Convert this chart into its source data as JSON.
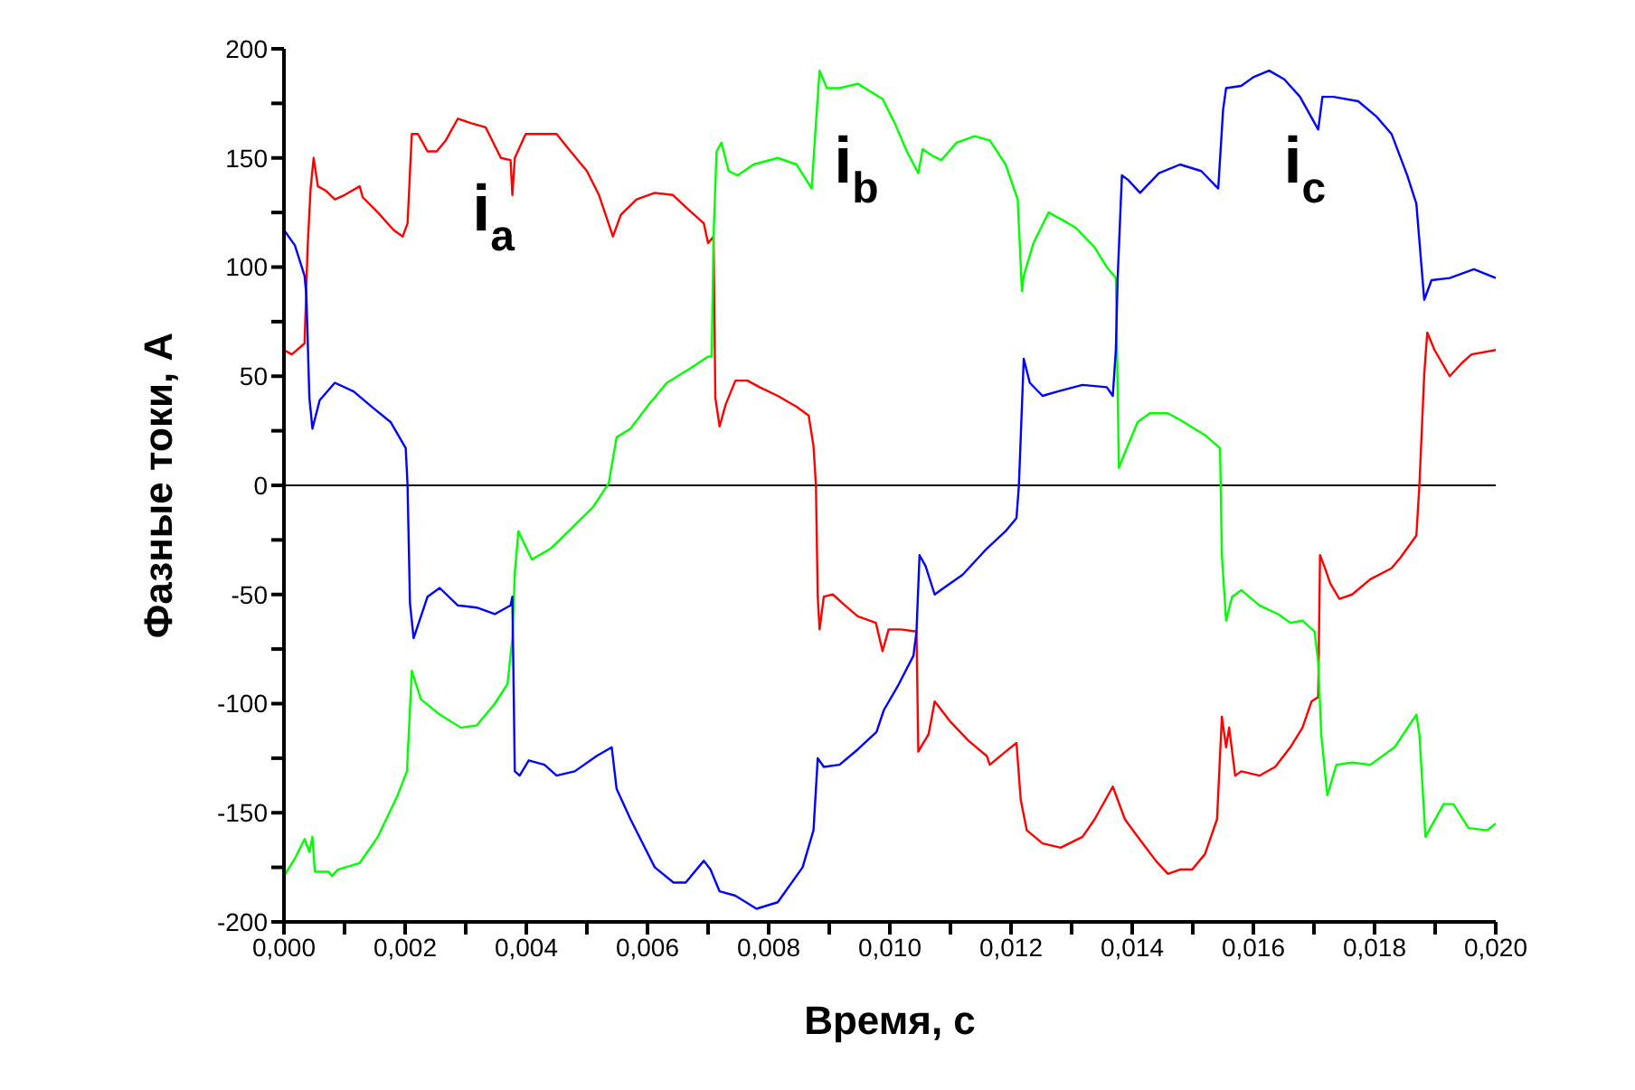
{
  "chart_data": {
    "type": "line",
    "xlabel": "Время, с",
    "ylabel": "Фазные токи, А",
    "marker": "none",
    "xlim": [
      0,
      0.02
    ],
    "ylim": [
      -200,
      200
    ],
    "xticks": [
      {
        "value": 0,
        "label": "0,000"
      },
      {
        "value": 0.001,
        "label": null
      },
      {
        "value": 0.002,
        "label": "0,002"
      },
      {
        "value": 0.003,
        "label": null
      },
      {
        "value": 0.004,
        "label": "0,004"
      },
      {
        "value": 0.005,
        "label": null
      },
      {
        "value": 0.006,
        "label": "0,006"
      },
      {
        "value": 0.007,
        "label": null
      },
      {
        "value": 0.008,
        "label": "0,008"
      },
      {
        "value": 0.009,
        "label": null
      },
      {
        "value": 0.01,
        "label": "0,010"
      },
      {
        "value": 0.011,
        "label": null
      },
      {
        "value": 0.012,
        "label": "0,012"
      },
      {
        "value": 0.013,
        "label": null
      },
      {
        "value": 0.014,
        "label": "0,014"
      },
      {
        "value": 0.015,
        "label": null
      },
      {
        "value": 0.016,
        "label": "0,016"
      },
      {
        "value": 0.017,
        "label": null
      },
      {
        "value": 0.018,
        "label": "0,018"
      },
      {
        "value": 0.019,
        "label": null
      },
      {
        "value": 0.02,
        "label": "0,020"
      }
    ],
    "yticks": [
      -200,
      {
        "value": -175,
        "label": null
      },
      -150,
      {
        "value": -125,
        "label": null
      },
      -100,
      {
        "value": -75,
        "label": null
      },
      -50,
      {
        "value": -25,
        "label": null
      },
      0,
      {
        "value": 25,
        "label": null
      },
      50,
      {
        "value": 75,
        "label": null
      },
      100,
      {
        "value": 125,
        "label": null
      },
      150,
      {
        "value": 175,
        "label": null
      },
      200
    ],
    "ref_lines": [
      {
        "axis": "y",
        "value": 0,
        "color": "#000000"
      }
    ],
    "series": [
      {
        "name": "i$_{a}$",
        "color": "#ff0000",
        "x": [
          0,
          0.00013,
          0.00034,
          0.00039,
          0.00044,
          0.00049,
          0.00056,
          0.00069,
          0.00084,
          0.001,
          0.00125,
          0.0013,
          0.00155,
          0.00181,
          0.00196,
          0.00204,
          0.00211,
          0.00221,
          0.00237,
          0.00252,
          0.00267,
          0.00287,
          0.00308,
          0.00333,
          0.00358,
          0.00374,
          0.00377,
          0.00381,
          0.00399,
          0.00419,
          0.0045,
          0.0047,
          0.005,
          0.0052,
          0.00543,
          0.00556,
          0.00582,
          0.00612,
          0.00642,
          0.00673,
          0.00693,
          0.007,
          0.00709,
          0.00712,
          0.00719,
          0.00729,
          0.00745,
          0.00765,
          0.00785,
          0.00815,
          0.00846,
          0.00866,
          0.00874,
          0.00878,
          0.00881,
          0.00884,
          0.00891,
          0.00906,
          0.00926,
          0.00947,
          0.00977,
          0.00988,
          0.00998,
          0.01018,
          0.01044,
          0.01047,
          0.01051,
          0.01064,
          0.01074,
          0.01099,
          0.0113,
          0.0116,
          0.01165,
          0.01191,
          0.01209,
          0.01216,
          0.01226,
          0.01252,
          0.01282,
          0.01318,
          0.01338,
          0.01368,
          0.01388,
          0.01409,
          0.01439,
          0.01459,
          0.01479,
          0.01499,
          0.0152,
          0.0154,
          0.01548,
          0.01555,
          0.0156,
          0.0157,
          0.0158,
          0.0161,
          0.01636,
          0.01661,
          0.01681,
          0.01696,
          0.01707,
          0.0171,
          0.01717,
          0.01727,
          0.01742,
          0.01763,
          0.01793,
          0.01828,
          0.01843,
          0.01869,
          0.01874,
          0.01882,
          0.01887,
          0.01899,
          0.01924,
          0.01944,
          0.0196,
          0.02
        ],
        "values": [
          62,
          60,
          65,
          109,
          136,
          150,
          137,
          135,
          131,
          133,
          137,
          132,
          125,
          117,
          114,
          120,
          161,
          161,
          153,
          153,
          158,
          168,
          166,
          164,
          150,
          149,
          133,
          150,
          161,
          161,
          161,
          154,
          144,
          133,
          114,
          124,
          131,
          134,
          133,
          125,
          120,
          111,
          114,
          40,
          27,
          37,
          48,
          48,
          45,
          41,
          36,
          32,
          18,
          0,
          -51,
          -66,
          -51,
          -50,
          -55,
          -60,
          -63,
          -76,
          -66,
          -66,
          -67,
          -122,
          -120,
          -114,
          -99,
          -108,
          -117,
          -124,
          -128,
          -122,
          -118,
          -144,
          -158,
          -164,
          -166,
          -161,
          -153,
          -138,
          -153,
          -161,
          -172,
          -178,
          -176,
          -176,
          -169,
          -153,
          -106,
          -120,
          -111,
          -133,
          -131,
          -133,
          -129,
          -120,
          -111,
          -99,
          -97,
          -32,
          -37,
          -45,
          -52,
          -50,
          -43,
          -38,
          -33,
          -23,
          0,
          51,
          70,
          62,
          50,
          56,
          60,
          62
        ]
      },
      {
        "name": "i$_{b}$",
        "color": "#00ff00",
        "x": [
          0,
          0.00018,
          0.00034,
          0.00042,
          0.00047,
          0.00051,
          0.00074,
          0.00079,
          0.00089,
          0.00125,
          0.00155,
          0.00186,
          0.00203,
          0.00211,
          0.00226,
          0.00257,
          0.00292,
          0.00318,
          0.00348,
          0.00369,
          0.00377,
          0.00381,
          0.00387,
          0.00409,
          0.0044,
          0.0047,
          0.0051,
          0.00536,
          0.00549,
          0.00572,
          0.00602,
          0.00632,
          0.00673,
          0.007,
          0.00706,
          0.00709,
          0.00714,
          0.00722,
          0.00734,
          0.00749,
          0.00775,
          0.00815,
          0.00846,
          0.00871,
          0.00878,
          0.00884,
          0.00896,
          0.00917,
          0.00947,
          0.00988,
          0.01008,
          0.01028,
          0.01047,
          0.01054,
          0.0107,
          0.01085,
          0.0111,
          0.0114,
          0.01165,
          0.01191,
          0.01211,
          0.01218,
          0.01221,
          0.01237,
          0.01262,
          0.01282,
          0.01307,
          0.01338,
          0.01358,
          0.01373,
          0.01378,
          0.01388,
          0.01409,
          0.01429,
          0.01459,
          0.01479,
          0.0152,
          0.01545,
          0.01548,
          0.01555,
          0.01565,
          0.0158,
          0.0161,
          0.01641,
          0.01661,
          0.01681,
          0.01701,
          0.01707,
          0.01712,
          0.01722,
          0.01737,
          0.01763,
          0.01793,
          0.01833,
          0.01869,
          0.01874,
          0.01884,
          0.01914,
          0.0193,
          0.01955,
          0.01986,
          0.02
        ],
        "values": [
          -179,
          -171,
          -162,
          -168,
          -161,
          -177,
          -177,
          -179,
          -176,
          -173,
          -161,
          -143,
          -131,
          -85,
          -98,
          -105,
          -111,
          -110,
          -100,
          -91,
          -70,
          -40,
          -21,
          -34,
          -29,
          -21,
          -10,
          1,
          22,
          26,
          37,
          47,
          54,
          59,
          59,
          114,
          153,
          157,
          144,
          142,
          147,
          150,
          147,
          136,
          166,
          190,
          182,
          182,
          184,
          177,
          166,
          153,
          143,
          154,
          151,
          149,
          157,
          160,
          158,
          147,
          131,
          89,
          96,
          111,
          125,
          122,
          118,
          109,
          100,
          95,
          8,
          15,
          29,
          33,
          33,
          30,
          23,
          17,
          -32,
          -62,
          -51,
          -48,
          -55,
          -59,
          -63,
          -62,
          -67,
          -81,
          -114,
          -142,
          -128,
          -127,
          -128,
          -120,
          -105,
          -114,
          -161,
          -146,
          -146,
          -157,
          -158,
          -155
        ]
      },
      {
        "name": "i$_{c}$",
        "color": "#0000ff",
        "x": [
          0,
          0.00018,
          0.00034,
          0.00037,
          0.00042,
          0.00047,
          0.00059,
          0.00084,
          0.00115,
          0.00145,
          0.00176,
          0.00201,
          0.00204,
          0.00208,
          0.00214,
          0.00237,
          0.00257,
          0.00287,
          0.00318,
          0.00348,
          0.00374,
          0.00377,
          0.00381,
          0.00389,
          0.00404,
          0.0043,
          0.0045,
          0.0048,
          0.00516,
          0.00541,
          0.00549,
          0.00572,
          0.00592,
          0.00612,
          0.00643,
          0.00663,
          0.00693,
          0.00704,
          0.00719,
          0.00745,
          0.0078,
          0.00815,
          0.00856,
          0.00874,
          0.00881,
          0.00891,
          0.00917,
          0.00947,
          0.00978,
          0.0099,
          0.01013,
          0.01039,
          0.01044,
          0.01049,
          0.01059,
          0.01074,
          0.01089,
          0.0112,
          0.0116,
          0.01191,
          0.01209,
          0.01213,
          0.01221,
          0.01231,
          0.01252,
          0.01277,
          0.01318,
          0.01358,
          0.01368,
          0.01373,
          0.01376,
          0.01383,
          0.01393,
          0.01413,
          0.01444,
          0.01479,
          0.01514,
          0.01542,
          0.0155,
          0.01555,
          0.0158,
          0.016,
          0.01626,
          0.01651,
          0.01677,
          0.01707,
          0.01714,
          0.01732,
          0.01773,
          0.01803,
          0.01828,
          0.01854,
          0.01869,
          0.01882,
          0.01894,
          0.01924,
          0.01964,
          0.02
        ],
        "values": [
          117,
          110,
          96,
          87,
          40,
          26,
          39,
          47,
          43,
          36,
          29,
          17,
          0,
          -54,
          -70,
          -51,
          -47,
          -55,
          -56,
          -59,
          -55,
          -51,
          -131,
          -133,
          -126,
          -128,
          -133,
          -131,
          -124,
          -120,
          -139,
          -153,
          -164,
          -175,
          -182,
          -182,
          -172,
          -176,
          -186,
          -188,
          -194,
          -191,
          -175,
          -158,
          -125,
          -129,
          -128,
          -121,
          -113,
          -103,
          -92,
          -78,
          -67,
          -32,
          -37,
          -50,
          -47,
          -41,
          -29,
          -21,
          -15,
          0,
          58,
          47,
          41,
          43,
          46,
          45,
          41,
          62,
          95,
          142,
          140,
          134,
          143,
          147,
          144,
          136,
          172,
          182,
          183,
          187,
          190,
          186,
          178,
          163,
          178,
          178,
          176,
          169,
          161,
          142,
          129,
          85,
          94,
          95,
          99,
          95
        ]
      }
    ]
  }
}
